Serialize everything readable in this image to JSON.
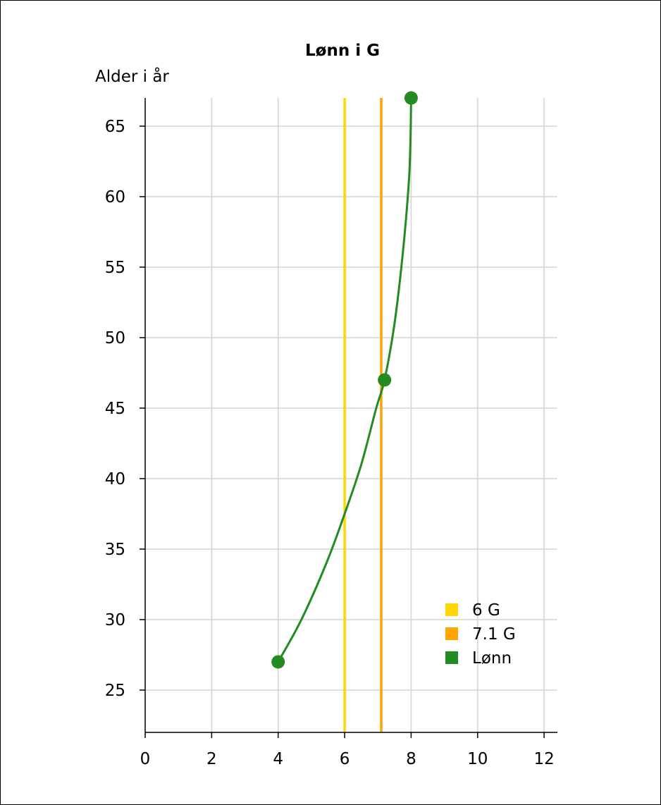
{
  "chart_data": {
    "type": "line",
    "title": "Lønn i G",
    "ylabel": "Alder i år",
    "xlabel": "",
    "xlim": [
      0,
      12.4
    ],
    "ylim": [
      22,
      67
    ],
    "x_ticks": [
      0,
      2,
      4,
      6,
      8,
      10,
      12
    ],
    "y_ticks": [
      25,
      30,
      35,
      40,
      45,
      50,
      55,
      60,
      65
    ],
    "grid": true,
    "legend_position": "bottom-right",
    "series": [
      {
        "name": "6 G",
        "color": "#FFD700",
        "style": "vertical-line",
        "x": [
          6,
          6
        ],
        "y": [
          22,
          67
        ]
      },
      {
        "name": "7.1 G",
        "color": "#FFA500",
        "style": "vertical-line",
        "x": [
          7.1,
          7.1
        ],
        "y": [
          22,
          67
        ]
      },
      {
        "name": "Lønn",
        "color": "#228B22",
        "style": "curve-with-markers",
        "points": [
          {
            "x": 4,
            "y": 27
          },
          {
            "x": 7.2,
            "y": 47
          },
          {
            "x": 8,
            "y": 67
          }
        ],
        "curve": [
          {
            "x": 4.0,
            "y": 27
          },
          {
            "x": 4.7,
            "y": 30
          },
          {
            "x": 5.45,
            "y": 34
          },
          {
            "x": 6.0,
            "y": 37.5
          },
          {
            "x": 6.5,
            "y": 41
          },
          {
            "x": 6.95,
            "y": 45
          },
          {
            "x": 7.2,
            "y": 47
          },
          {
            "x": 7.5,
            "y": 51
          },
          {
            "x": 7.75,
            "y": 56
          },
          {
            "x": 7.93,
            "y": 61
          },
          {
            "x": 7.98,
            "y": 64
          },
          {
            "x": 8.0,
            "y": 67
          }
        ]
      }
    ]
  }
}
